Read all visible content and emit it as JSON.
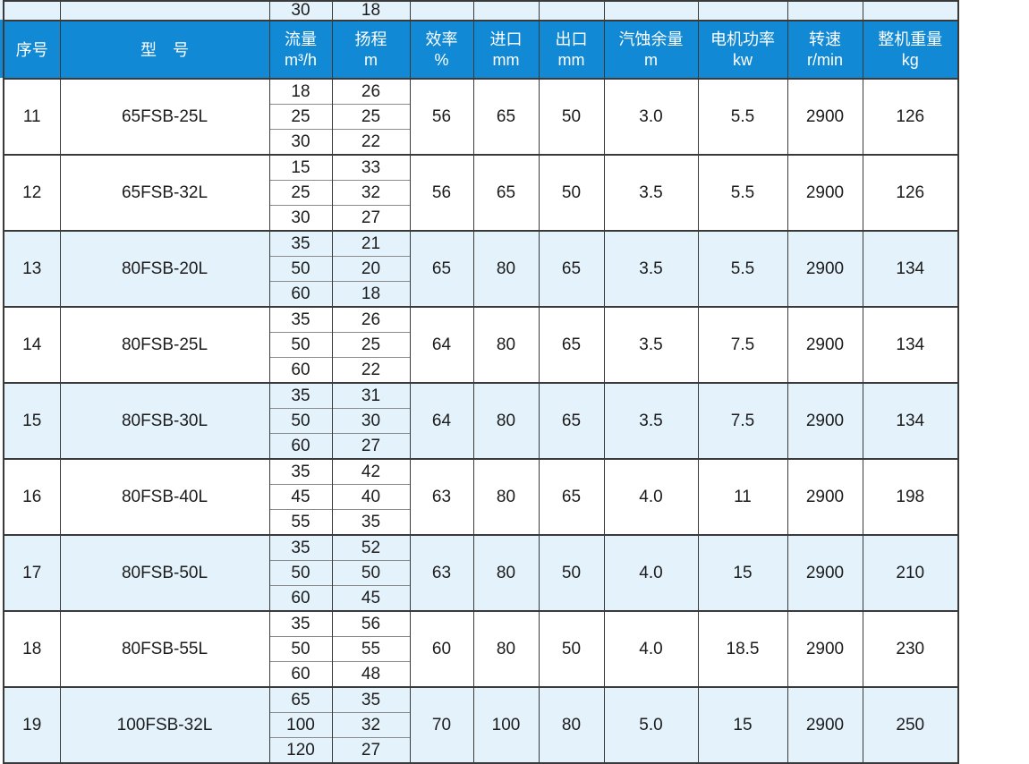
{
  "table": {
    "partial_top_row": {
      "flow": "30",
      "head": "18"
    },
    "header": {
      "cols": [
        {
          "line1": "序号",
          "line2": ""
        },
        {
          "line1": "型　号",
          "line2": ""
        },
        {
          "line1": "流量",
          "line2": "m³/h"
        },
        {
          "line1": "扬程",
          "line2": "m"
        },
        {
          "line1": "效率",
          "line2": "%"
        },
        {
          "line1": "进口",
          "line2": "mm"
        },
        {
          "line1": "出口",
          "line2": "mm"
        },
        {
          "line1": "汽蚀余量",
          "line2": "m"
        },
        {
          "line1": "电机功率",
          "line2": "kw"
        },
        {
          "line1": "转速",
          "line2": "r/min"
        },
        {
          "line1": "整机重量",
          "line2": "kg"
        }
      ]
    },
    "rows": [
      {
        "no": "11",
        "model": "65FSB-25L",
        "flow": [
          "18",
          "25",
          "30"
        ],
        "head": [
          "26",
          "25",
          "22"
        ],
        "eff": "56",
        "inlet": "65",
        "outlet": "50",
        "npsh": "3.0",
        "power": "5.5",
        "speed": "2900",
        "weight": "126",
        "shaded": false
      },
      {
        "no": "12",
        "model": "65FSB-32L",
        "flow": [
          "15",
          "25",
          "30"
        ],
        "head": [
          "33",
          "32",
          "27"
        ],
        "eff": "56",
        "inlet": "65",
        "outlet": "50",
        "npsh": "3.5",
        "power": "5.5",
        "speed": "2900",
        "weight": "126",
        "shaded": false
      },
      {
        "no": "13",
        "model": "80FSB-20L",
        "flow": [
          "35",
          "50",
          "60"
        ],
        "head": [
          "21",
          "20",
          "18"
        ],
        "eff": "65",
        "inlet": "80",
        "outlet": "65",
        "npsh": "3.5",
        "power": "5.5",
        "speed": "2900",
        "weight": "134",
        "shaded": true
      },
      {
        "no": "14",
        "model": "80FSB-25L",
        "flow": [
          "35",
          "50",
          "60"
        ],
        "head": [
          "26",
          "25",
          "22"
        ],
        "eff": "64",
        "inlet": "80",
        "outlet": "65",
        "npsh": "3.5",
        "power": "7.5",
        "speed": "2900",
        "weight": "134",
        "shaded": false
      },
      {
        "no": "15",
        "model": "80FSB-30L",
        "flow": [
          "35",
          "50",
          "60"
        ],
        "head": [
          "31",
          "30",
          "27"
        ],
        "eff": "64",
        "inlet": "80",
        "outlet": "65",
        "npsh": "3.5",
        "power": "7.5",
        "speed": "2900",
        "weight": "134",
        "shaded": true
      },
      {
        "no": "16",
        "model": "80FSB-40L",
        "flow": [
          "35",
          "45",
          "55"
        ],
        "head": [
          "42",
          "40",
          "35"
        ],
        "eff": "63",
        "inlet": "80",
        "outlet": "65",
        "npsh": "4.0",
        "power": "11",
        "speed": "2900",
        "weight": "198",
        "shaded": false
      },
      {
        "no": "17",
        "model": "80FSB-50L",
        "flow": [
          "35",
          "50",
          "60"
        ],
        "head": [
          "52",
          "50",
          "45"
        ],
        "eff": "63",
        "inlet": "80",
        "outlet": "50",
        "npsh": "4.0",
        "power": "15",
        "speed": "2900",
        "weight": "210",
        "shaded": true
      },
      {
        "no": "18",
        "model": "80FSB-55L",
        "flow": [
          "35",
          "50",
          "60"
        ],
        "head": [
          "56",
          "55",
          "48"
        ],
        "eff": "60",
        "inlet": "80",
        "outlet": "50",
        "npsh": "4.0",
        "power": "18.5",
        "speed": "2900",
        "weight": "230",
        "shaded": false
      },
      {
        "no": "19",
        "model": "100FSB-32L",
        "flow": [
          "65",
          "100",
          "120"
        ],
        "head": [
          "35",
          "32",
          "27"
        ],
        "eff": "70",
        "inlet": "100",
        "outlet": "80",
        "npsh": "5.0",
        "power": "15",
        "speed": "2900",
        "weight": "250",
        "shaded": true
      }
    ]
  },
  "colors": {
    "header_bg": "#1189d4",
    "row_shade": "#e4f2fb",
    "border_dark": "#3a3a3a",
    "border_sub": "#8b8b8b",
    "header_text": "#ffffff",
    "body_text": "#1c1c1c"
  }
}
